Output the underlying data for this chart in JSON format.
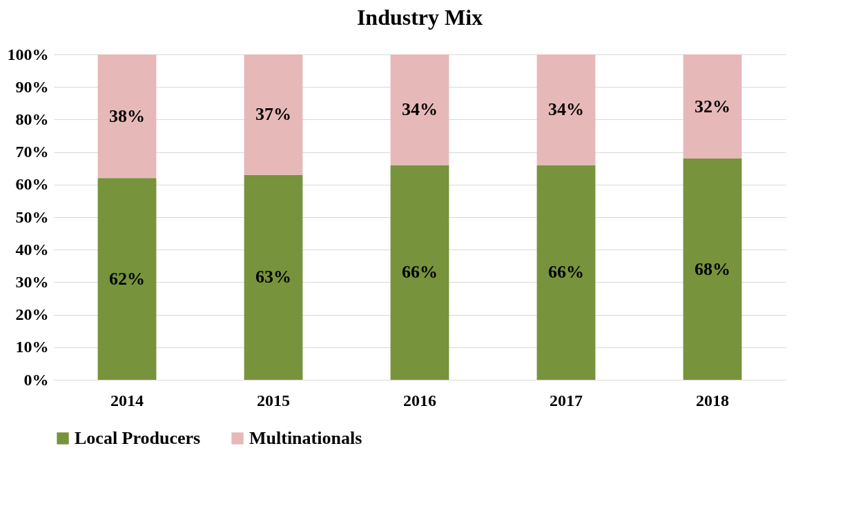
{
  "chart_data": {
    "type": "bar",
    "title": "Industry  Mix",
    "stacked": true,
    "categories": [
      "2014",
      "2015",
      "2016",
      "2017",
      "2018"
    ],
    "series": [
      {
        "name": "Local Producers",
        "color": "#77933c",
        "values": [
          62,
          63,
          66,
          66,
          68
        ],
        "value_labels": [
          "62%",
          "63%",
          "66%",
          "66%",
          "68%"
        ]
      },
      {
        "name": "Multinationals",
        "color": "#e6b9b8",
        "values": [
          38,
          37,
          34,
          34,
          32
        ],
        "value_labels": [
          "38%",
          "37%",
          "34%",
          "34%",
          "32%"
        ]
      }
    ],
    "ylim": [
      0,
      100
    ],
    "yticks": [
      {
        "value": 0,
        "label": "0%"
      },
      {
        "value": 10,
        "label": "10%"
      },
      {
        "value": 20,
        "label": "20%"
      },
      {
        "value": 30,
        "label": "30%"
      },
      {
        "value": 40,
        "label": "40%"
      },
      {
        "value": 50,
        "label": "50%"
      },
      {
        "value": 60,
        "label": "60%"
      },
      {
        "value": 70,
        "label": "70%"
      },
      {
        "value": 80,
        "label": "80%"
      },
      {
        "value": 90,
        "label": "90%"
      },
      {
        "value": 100,
        "label": "100%"
      }
    ],
    "grid": "y",
    "legend": "bottom"
  }
}
